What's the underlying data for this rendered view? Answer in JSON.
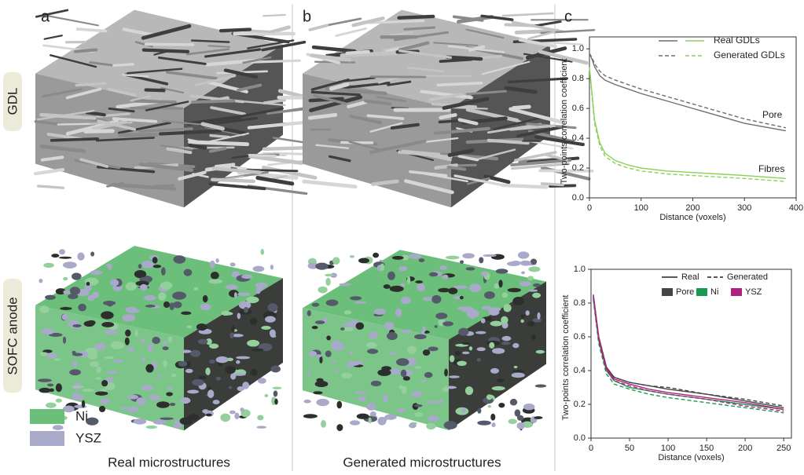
{
  "figure": {
    "panel_labels": [
      "a",
      "b",
      "c"
    ],
    "row_labels": [
      "GDL",
      "SOFC anode"
    ],
    "phase_legend": [
      {
        "label": "Ni",
        "color": "#6cbf7a"
      },
      {
        "label": "YSZ",
        "color": "#a9a9c9"
      }
    ],
    "captions": [
      "Real microstructures",
      "Generated microstructures"
    ]
  },
  "chart_data": [
    {
      "type": "line",
      "xlabel": "Distance (voxels)",
      "ylabel": "Two-points correlation coefficient",
      "xlim": [
        0,
        400
      ],
      "xticks": [
        0,
        100,
        200,
        300,
        400
      ],
      "ylim": [
        0,
        1.08
      ],
      "yticks": [
        {
          "value": 0,
          "label": "0.0"
        },
        0.2,
        0.4,
        0.6,
        0.8,
        {
          "value": 1,
          "label": "1.0"
        }
      ],
      "line_styles": [
        {
          "label": "Real GDLs",
          "dash": false
        },
        {
          "label": "Generated GDLs",
          "dash": true
        }
      ],
      "x": [
        0,
        5,
        10,
        20,
        30,
        50,
        75,
        100,
        150,
        200,
        250,
        300,
        380
      ],
      "series": [
        {
          "name": "Pore",
          "color": "#6e6e6e",
          "dash": false,
          "values": [
            0.97,
            0.93,
            0.88,
            0.82,
            0.79,
            0.76,
            0.73,
            0.7,
            0.65,
            0.6,
            0.55,
            0.5,
            0.45
          ]
        },
        {
          "name": "Pore",
          "color": "#6e6e6e",
          "dash": true,
          "values": [
            0.97,
            0.94,
            0.9,
            0.85,
            0.82,
            0.79,
            0.76,
            0.73,
            0.68,
            0.63,
            0.58,
            0.53,
            0.47
          ]
        },
        {
          "name": "Fibres",
          "color": "#8ccf5a",
          "dash": false,
          "values": [
            0.88,
            0.7,
            0.52,
            0.37,
            0.3,
            0.25,
            0.22,
            0.2,
            0.18,
            0.17,
            0.16,
            0.15,
            0.13
          ]
        },
        {
          "name": "Fibres",
          "color": "#8ccf5a",
          "dash": true,
          "values": [
            0.88,
            0.68,
            0.5,
            0.35,
            0.28,
            0.23,
            0.2,
            0.18,
            0.16,
            0.15,
            0.14,
            0.13,
            0.11
          ]
        }
      ]
    },
    {
      "type": "line",
      "xlabel": "Distance (voxels)",
      "ylabel": "Two-points correlation coefficient",
      "xlim": [
        0,
        260
      ],
      "xticks": [
        0,
        50,
        100,
        150,
        200,
        250
      ],
      "ylim": [
        0,
        1
      ],
      "yticks": [
        {
          "value": 0,
          "label": "0.0"
        },
        0.2,
        0.4,
        0.6,
        0.8,
        {
          "value": 1,
          "label": "1.0"
        }
      ],
      "line_styles": [
        {
          "label": "Real",
          "dash": false
        },
        {
          "label": "Generated",
          "dash": true
        }
      ],
      "x": [
        3,
        10,
        20,
        30,
        50,
        75,
        100,
        150,
        200,
        250
      ],
      "series": [
        {
          "name": "Pore",
          "color": "#444444",
          "dash": false,
          "values": [
            0.85,
            0.6,
            0.42,
            0.36,
            0.33,
            0.31,
            0.29,
            0.26,
            0.22,
            0.18
          ]
        },
        {
          "name": "Pore",
          "color": "#444444",
          "dash": true,
          "values": [
            0.84,
            0.6,
            0.42,
            0.36,
            0.33,
            0.31,
            0.3,
            0.26,
            0.23,
            0.19
          ]
        },
        {
          "name": "Ni",
          "color": "#1a9a50",
          "dash": false,
          "values": [
            0.83,
            0.58,
            0.4,
            0.34,
            0.3,
            0.28,
            0.26,
            0.23,
            0.2,
            0.17
          ]
        },
        {
          "name": "Ni",
          "color": "#1a9a50",
          "dash": true,
          "values": [
            0.82,
            0.56,
            0.38,
            0.32,
            0.29,
            0.26,
            0.24,
            0.21,
            0.18,
            0.15
          ]
        },
        {
          "name": "YSZ",
          "color": "#b0207f",
          "dash": false,
          "values": [
            0.84,
            0.59,
            0.41,
            0.35,
            0.32,
            0.29,
            0.27,
            0.24,
            0.21,
            0.17
          ]
        },
        {
          "name": "YSZ",
          "color": "#b0207f",
          "dash": true,
          "values": [
            0.83,
            0.58,
            0.4,
            0.34,
            0.31,
            0.28,
            0.26,
            0.23,
            0.19,
            0.16
          ]
        }
      ]
    }
  ]
}
